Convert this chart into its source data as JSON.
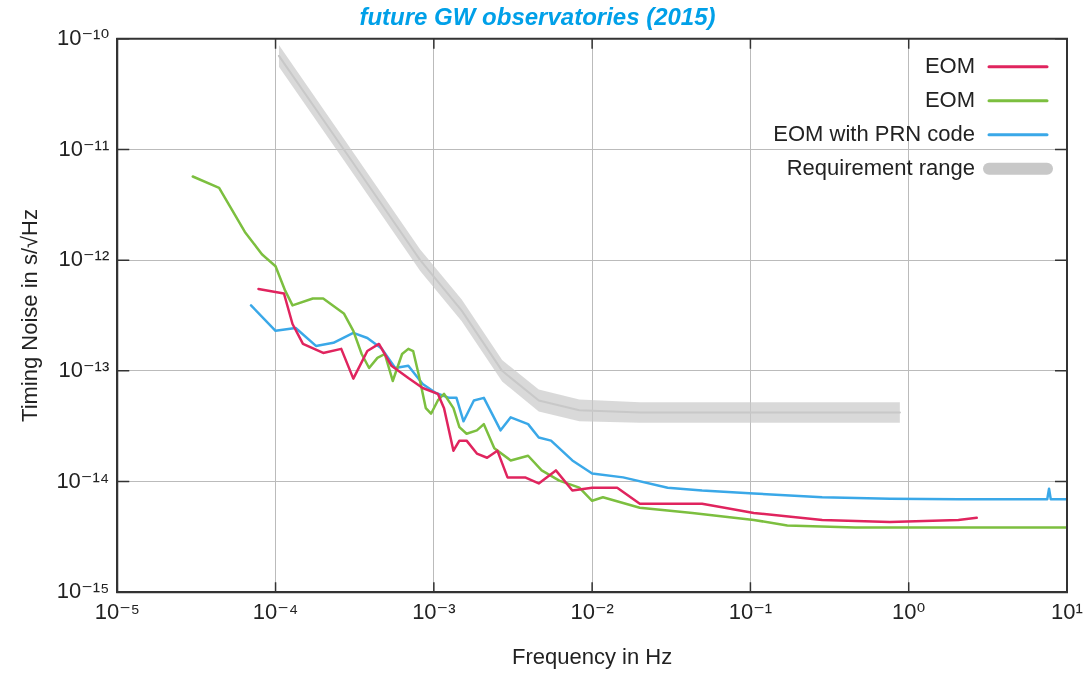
{
  "chart_data": {
    "type": "line",
    "title": "future GW observatories (2015)",
    "xlabel": "Frequency in Hz",
    "ylabel": "Timing Noise in s/√Hz",
    "log": "xy",
    "grid": true,
    "legend": "top right",
    "marker": "none",
    "line_style": "solid",
    "xlim": [
      1e-05,
      10
    ],
    "xticks": [
      {
        "value": 1e-05,
        "label": "10⁻⁵"
      },
      {
        "value": 0.0001,
        "label": "10⁻⁴"
      },
      {
        "value": 0.001,
        "label": "10⁻³"
      },
      {
        "value": 0.01,
        "label": "10⁻²"
      },
      {
        "value": 0.1,
        "label": "10⁻¹"
      },
      {
        "value": 1,
        "label": "10⁰"
      },
      {
        "value": 10,
        "label": "10¹"
      }
    ],
    "ylim": [
      1e-15,
      1e-10
    ],
    "yticks": [
      {
        "value": 1e-15,
        "label": "10⁻¹⁵"
      },
      {
        "value": 1e-14,
        "label": "10⁻¹⁴"
      },
      {
        "value": 1e-13,
        "label": "10⁻¹³"
      },
      {
        "value": 1e-12,
        "label": "10⁻¹²"
      },
      {
        "value": 1e-11,
        "label": "10⁻¹¹"
      },
      {
        "value": 1e-10,
        "label": "10⁻¹⁰"
      }
    ],
    "series": [
      {
        "name": "EOM",
        "color": "#e0245e",
        "x": [
          7.8e-05,
          0.000113,
          0.000128,
          0.000149,
          0.0002,
          0.00026,
          0.00031,
          0.00038,
          0.00045,
          0.00054,
          0.00069,
          0.00085,
          0.00106,
          0.00116,
          0.00133,
          0.00145,
          0.00161,
          0.00187,
          0.00217,
          0.00252,
          0.00292,
          0.00377,
          0.0046,
          0.0059,
          0.0075,
          0.01,
          0.0144,
          0.02,
          0.0495,
          0.105,
          0.284,
          0.76,
          2.06,
          2.69
        ],
        "values": [
          5.5e-13,
          5e-13,
          2.65e-13,
          1.75e-13,
          1.45e-13,
          1.58e-13,
          8.5e-14,
          1.51e-13,
          1.75e-13,
          1.11e-13,
          8.6e-14,
          7e-14,
          6.2e-14,
          4.6e-14,
          1.9e-14,
          2.34e-14,
          2.34e-14,
          1.79e-14,
          1.64e-14,
          1.9e-14,
          1.09e-14,
          1.09e-14,
          9.6e-15,
          1.26e-14,
          8.3e-15,
          8.8e-15,
          8.8e-15,
          6.3e-15,
          6.3e-15,
          5.2e-15,
          4.5e-15,
          4.3e-15,
          4.5e-15,
          4.7e-15
        ]
      },
      {
        "name": "EOM",
        "color": "#7cbf3f",
        "x": [
          3e-05,
          4.4e-05,
          6.4e-05,
          8.2e-05,
          0.0001,
          0.000115,
          0.000128,
          0.000172,
          0.0002,
          0.00027,
          0.00031,
          0.00035,
          0.00039,
          0.00044,
          0.00049,
          0.00055,
          0.00063,
          0.00069,
          0.00074,
          0.0008,
          0.00089,
          0.00096,
          0.00106,
          0.00116,
          0.00133,
          0.00145,
          0.00161,
          0.00187,
          0.00207,
          0.00241,
          0.00306,
          0.00394,
          0.0048,
          0.0062,
          0.0083,
          0.01,
          0.0117,
          0.02,
          0.043,
          0.105,
          0.171,
          0.46,
          2.06,
          10
        ],
        "values": [
          5.7e-12,
          4.5e-12,
          1.8e-12,
          1.13e-12,
          8.8e-13,
          5.3e-13,
          3.9e-13,
          4.5e-13,
          4.5e-13,
          3.3e-13,
          2.3e-13,
          1.42e-13,
          1.06e-13,
          1.31e-13,
          1.42e-13,
          8.1e-14,
          1.42e-13,
          1.58e-13,
          1.51e-13,
          9.4e-14,
          4.6e-14,
          4.1e-14,
          5.4e-14,
          6.2e-14,
          4.6e-14,
          3.1e-14,
          2.7e-14,
          2.9e-14,
          3.3e-14,
          2e-14,
          1.55e-14,
          1.71e-14,
          1.26e-14,
          1.02e-14,
          8.8e-15,
          6.7e-15,
          7.2e-15,
          5.8e-15,
          5.2e-15,
          4.5e-15,
          4e-15,
          3.85e-15,
          3.85e-15,
          3.85e-15
        ]
      },
      {
        "name": "EOM with PRN code",
        "color": "#3aa8e8",
        "x": [
          7e-05,
          0.0001,
          0.000134,
          0.00018,
          0.000232,
          0.00031,
          0.00038,
          0.00047,
          0.00057,
          0.00069,
          0.00085,
          0.00103,
          0.00125,
          0.00139,
          0.00154,
          0.00179,
          0.00207,
          0.00264,
          0.00306,
          0.00394,
          0.0046,
          0.0055,
          0.0075,
          0.01,
          0.0157,
          0.03,
          0.0495,
          0.105,
          0.284,
          0.76,
          2.06,
          7.5,
          7.7,
          7.9,
          10
        ],
        "values": [
          3.9e-13,
          2.3e-13,
          2.44e-13,
          1.68e-13,
          1.79e-13,
          2.2e-13,
          1.98e-13,
          1.58e-13,
          1.06e-13,
          1.11e-13,
          7.6e-14,
          6.3e-14,
          5.7e-14,
          5.7e-14,
          3.5e-14,
          5.4e-14,
          5.7e-14,
          2.9e-14,
          3.8e-14,
          3.3e-14,
          2.5e-14,
          2.34e-14,
          1.55e-14,
          1.18e-14,
          1.09e-14,
          8.8e-15,
          8.3e-15,
          7.8e-15,
          7.2e-15,
          7e-15,
          6.9e-15,
          6.9e-15,
          8.6e-15,
          6.9e-15,
          6.9e-15
        ]
      },
      {
        "name": "Requirement range",
        "color": "#c8c8c8",
        "x": [
          0.000105,
          0.00027,
          0.00082,
          0.0015,
          0.0027,
          0.0046,
          0.0083,
          0.02,
          0.88
        ],
        "values": [
          7e-11,
          1e-11,
          1e-12,
          3.5e-13,
          1e-13,
          5.4e-14,
          4.4e-14,
          4.2e-14,
          4.2e-14
        ],
        "lower": [
          5.6e-11,
          8e-12,
          8e-13,
          2.8e-13,
          8e-14,
          4.3e-14,
          3.5e-14,
          3.4e-14,
          3.4e-14
        ],
        "upper": [
          8.8e-11,
          1.25e-11,
          1.25e-12,
          4.4e-13,
          1.25e-13,
          6.8e-14,
          5.5e-14,
          5.2e-14,
          5.2e-14
        ]
      }
    ]
  }
}
